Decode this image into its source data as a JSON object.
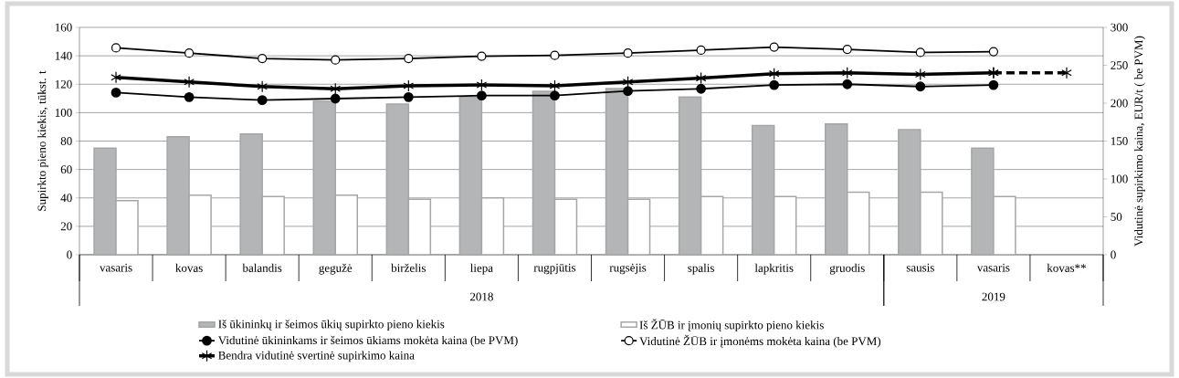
{
  "chart_data": {
    "type": "bar",
    "categories": [
      "vasaris",
      "kovas",
      "balandis",
      "gegužė",
      "birželis",
      "liepa",
      "rugpjūtis",
      "rugsėjis",
      "spalis",
      "lapkritis",
      "gruodis",
      "sausis",
      "vasaris",
      "kovas**"
    ],
    "series": [
      {
        "name": "Iš ūkininkų ir šeimos ūkių supirkto pieno kiekis",
        "color": "#b3b5b6",
        "values": [
          75,
          83,
          85,
          108,
          106,
          111,
          115,
          117,
          111,
          91,
          92,
          88,
          75,
          null
        ]
      },
      {
        "name": "Iš ŽŪB ir įmonių supirkto pieno kiekis",
        "color": "#ffffff",
        "values": [
          38,
          42,
          41,
          42,
          39,
          40,
          39,
          39,
          41,
          41,
          44,
          44,
          41,
          null
        ]
      },
      {
        "name": "Vidutinė ūkininkams ir šeimos ūkiams mokėta kaina (be PVM)",
        "type": "line",
        "axis": "y2",
        "color": "#000000",
        "marker": "circle",
        "line_style": "solid",
        "values": [
          214,
          208,
          204,
          206,
          208,
          210,
          210,
          216,
          219,
          224,
          225,
          222,
          224,
          null
        ]
      },
      {
        "name": "Vidutinė ŽŪB ir įmonėms mokėta kaina (be PVM)",
        "type": "line",
        "axis": "y2",
        "color": "#000000",
        "marker": "circle-open",
        "line_style": "solid",
        "values": [
          273,
          266,
          259,
          257,
          259,
          262,
          263,
          266,
          270,
          274,
          271,
          267,
          268,
          null
        ]
      },
      {
        "name": "Bendra vidutinė svertinė supirkimo kaina",
        "type": "line",
        "axis": "y2",
        "color": "#000000",
        "marker": "cross",
        "line_style": "solid",
        "values": [
          234,
          228,
          222,
          219,
          223,
          224,
          223,
          228,
          233,
          239,
          240,
          238,
          240,
          null
        ]
      },
      {
        "type": "line",
        "axis": "y2",
        "color": "#000000",
        "marker": "cross",
        "line_style": "dashed",
        "values": [
          null,
          null,
          null,
          null,
          null,
          null,
          null,
          null,
          null,
          null,
          null,
          null,
          240,
          240
        ]
      }
    ],
    "ylabel": "Supirkto pieno kiekis, tūkst. t",
    "y2label": "Vidutinė supirkimo kaina, EUR/t ( be PVM)",
    "ylim": [
      0,
      160
    ],
    "yticks": [
      0,
      20,
      40,
      60,
      80,
      100,
      120,
      140,
      160
    ],
    "y2lim": [
      0,
      300
    ],
    "y2ticks": [
      0,
      50,
      100,
      150,
      200,
      250,
      300
    ],
    "annotations": [
      "2018",
      "2019"
    ],
    "grid": "y",
    "legend": "bottom"
  }
}
